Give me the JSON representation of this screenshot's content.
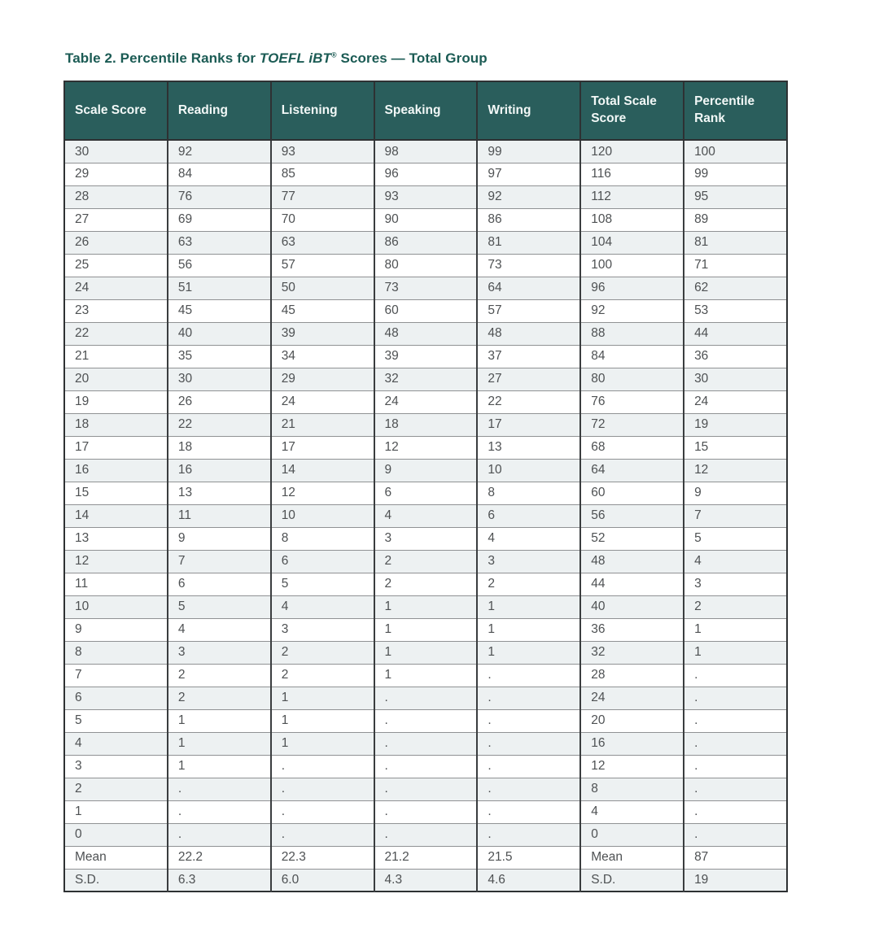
{
  "title": {
    "prefix": "Table 2. Percentile Ranks for ",
    "brand": "TOEFL iBT",
    "reg": "®",
    "suffix": " Scores — Total Group"
  },
  "colors": {
    "title_color": "#1b5b54",
    "header_bg": "#2a5e5c",
    "header_text": "#f2f8f7",
    "alt_row_bg": "#edf1f2",
    "row_bg": "#ffffff",
    "cell_text": "#4e5153",
    "border_outer": "#2e3133",
    "border_vertical": "#3a3d3f",
    "border_horizontal": "#909294"
  },
  "table": {
    "columns": [
      "Scale Score",
      "Reading",
      "Listening",
      "Speaking",
      "Writing",
      "Total Scale Score",
      "Percentile Rank"
    ],
    "rows": [
      [
        "30",
        "92",
        "93",
        "98",
        "99",
        "120",
        "100"
      ],
      [
        "29",
        "84",
        "85",
        "96",
        "97",
        "116",
        "99"
      ],
      [
        "28",
        "76",
        "77",
        "93",
        "92",
        "112",
        "95"
      ],
      [
        "27",
        "69",
        "70",
        "90",
        "86",
        "108",
        "89"
      ],
      [
        "26",
        "63",
        "63",
        "86",
        "81",
        "104",
        "81"
      ],
      [
        "25",
        "56",
        "57",
        "80",
        "73",
        "100",
        "71"
      ],
      [
        "24",
        "51",
        "50",
        "73",
        "64",
        "96",
        "62"
      ],
      [
        "23",
        "45",
        "45",
        "60",
        "57",
        "92",
        "53"
      ],
      [
        "22",
        "40",
        "39",
        "48",
        "48",
        "88",
        "44"
      ],
      [
        "21",
        "35",
        "34",
        "39",
        "37",
        "84",
        "36"
      ],
      [
        "20",
        "30",
        "29",
        "32",
        "27",
        "80",
        "30"
      ],
      [
        "19",
        "26",
        "24",
        "24",
        "22",
        "76",
        "24"
      ],
      [
        "18",
        "22",
        "21",
        "18",
        "17",
        "72",
        "19"
      ],
      [
        "17",
        "18",
        "17",
        "12",
        "13",
        "68",
        "15"
      ],
      [
        "16",
        "16",
        "14",
        "9",
        "10",
        "64",
        "12"
      ],
      [
        "15",
        "13",
        "12",
        "6",
        "8",
        "60",
        "9"
      ],
      [
        "14",
        "11",
        "10",
        "4",
        "6",
        "56",
        "7"
      ],
      [
        "13",
        "9",
        "8",
        "3",
        "4",
        "52",
        "5"
      ],
      [
        "12",
        "7",
        "6",
        "2",
        "3",
        "48",
        "4"
      ],
      [
        "11",
        "6",
        "5",
        "2",
        "2",
        "44",
        "3"
      ],
      [
        "10",
        "5",
        "4",
        "1",
        "1",
        "40",
        "2"
      ],
      [
        "9",
        "4",
        "3",
        "1",
        "1",
        "36",
        "1"
      ],
      [
        "8",
        "3",
        "2",
        "1",
        "1",
        "32",
        "1"
      ],
      [
        "7",
        "2",
        "2",
        "1",
        ".",
        "28",
        "."
      ],
      [
        "6",
        "2",
        "1",
        ".",
        ".",
        "24",
        "."
      ],
      [
        "5",
        "1",
        "1",
        ".",
        ".",
        "20",
        "."
      ],
      [
        "4",
        "1",
        "1",
        ".",
        ".",
        "16",
        "."
      ],
      [
        "3",
        "1",
        ".",
        ".",
        ".",
        "12",
        "."
      ],
      [
        "2",
        ".",
        ".",
        ".",
        ".",
        "8",
        "."
      ],
      [
        "1",
        ".",
        ".",
        ".",
        ".",
        "4",
        "."
      ],
      [
        "0",
        ".",
        ".",
        ".",
        ".",
        "0",
        "."
      ],
      [
        "Mean",
        "22.2",
        "22.3",
        "21.2",
        "21.5",
        "Mean",
        "87"
      ],
      [
        "S.D.",
        "6.3",
        "6.0",
        "4.3",
        "4.6",
        "S.D.",
        "19"
      ]
    ]
  }
}
